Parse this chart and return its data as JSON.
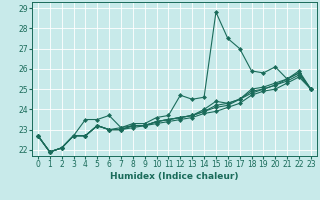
{
  "xlabel": "Humidex (Indice chaleur)",
  "xlim": [
    -0.5,
    23.5
  ],
  "ylim": [
    21.7,
    29.3
  ],
  "yticks": [
    22,
    23,
    24,
    25,
    26,
    27,
    28,
    29
  ],
  "xticks": [
    0,
    1,
    2,
    3,
    4,
    5,
    6,
    7,
    8,
    9,
    10,
    11,
    12,
    13,
    14,
    15,
    16,
    17,
    18,
    19,
    20,
    21,
    22,
    23
  ],
  "bg_color": "#c8eaea",
  "line_color": "#1a6b5a",
  "grid_color": "#ffffff",
  "lines": [
    [
      22.7,
      21.9,
      22.1,
      22.7,
      23.5,
      23.5,
      23.7,
      23.1,
      23.3,
      23.3,
      23.6,
      23.7,
      24.7,
      24.5,
      24.6,
      28.8,
      27.5,
      27.0,
      25.9,
      25.8,
      26.1,
      25.5,
      25.9,
      25.0
    ],
    [
      22.7,
      21.9,
      22.1,
      22.7,
      22.7,
      23.2,
      23.0,
      23.0,
      23.2,
      23.2,
      23.4,
      23.5,
      23.6,
      23.7,
      24.0,
      24.4,
      24.3,
      24.5,
      25.0,
      25.1,
      25.3,
      25.5,
      25.8,
      25.0
    ],
    [
      22.7,
      21.9,
      22.1,
      22.7,
      22.7,
      23.2,
      23.0,
      23.1,
      23.2,
      23.2,
      23.4,
      23.5,
      23.6,
      23.7,
      23.9,
      24.2,
      24.3,
      24.5,
      24.9,
      25.0,
      25.2,
      25.5,
      25.8,
      25.0
    ],
    [
      22.7,
      21.9,
      22.1,
      22.7,
      22.7,
      23.2,
      23.0,
      23.0,
      23.2,
      23.2,
      23.4,
      23.5,
      23.6,
      23.7,
      23.9,
      24.1,
      24.2,
      24.5,
      24.8,
      25.0,
      25.2,
      25.4,
      25.7,
      25.0
    ],
    [
      22.7,
      21.9,
      22.1,
      22.7,
      22.7,
      23.2,
      23.0,
      23.0,
      23.1,
      23.2,
      23.3,
      23.4,
      23.5,
      23.6,
      23.8,
      23.9,
      24.1,
      24.3,
      24.7,
      24.9,
      25.0,
      25.3,
      25.6,
      25.0
    ]
  ],
  "marker": "D",
  "markersize": 2.0,
  "linewidth": 0.8,
  "axis_fontsize": 6.5,
  "tick_fontsize": 5.5
}
